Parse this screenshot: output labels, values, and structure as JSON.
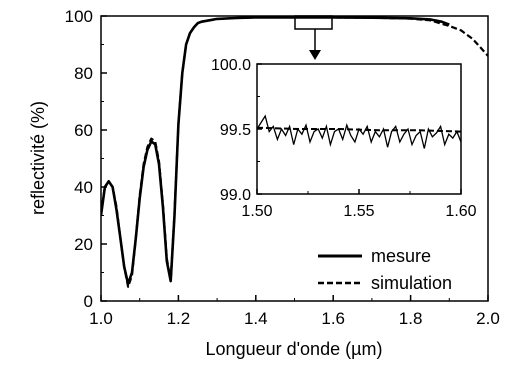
{
  "chart_data": {
    "type": "line",
    "xlabel": "Longueur d'onde (µm)",
    "ylabel": "reflectivité (%)",
    "xlim": [
      1.0,
      2.0
    ],
    "ylim": [
      0,
      100
    ],
    "xticks": [
      "1.0",
      "1.2",
      "1.4",
      "1.6",
      "1.8",
      "2.0"
    ],
    "yticks": [
      "0",
      "20",
      "40",
      "60",
      "80",
      "100"
    ],
    "legend_position": "bottom-right",
    "series": [
      {
        "name": "mesure",
        "style": "solid",
        "x": [
          1.0,
          1.01,
          1.02,
          1.03,
          1.04,
          1.05,
          1.06,
          1.07,
          1.08,
          1.09,
          1.1,
          1.11,
          1.12,
          1.13,
          1.14,
          1.15,
          1.16,
          1.17,
          1.18,
          1.19,
          1.2,
          1.21,
          1.22,
          1.23,
          1.24,
          1.25,
          1.26,
          1.28,
          1.3,
          1.35,
          1.4,
          1.5,
          1.6,
          1.7,
          1.8,
          1.85,
          1.88,
          1.9
        ],
        "y": [
          30,
          40,
          42,
          40,
          32,
          22,
          12,
          6,
          10,
          22,
          36,
          47,
          53,
          56,
          55,
          48,
          33,
          14,
          7,
          30,
          62,
          80,
          90,
          94,
          96,
          97.5,
          98,
          98.5,
          99,
          99.3,
          99.5,
          99.5,
          99.5,
          99.4,
          99.2,
          98.8,
          98.0,
          97.0
        ]
      },
      {
        "name": "simulation",
        "style": "dashed",
        "x": [
          1.0,
          1.01,
          1.02,
          1.03,
          1.04,
          1.05,
          1.06,
          1.07,
          1.08,
          1.09,
          1.1,
          1.11,
          1.12,
          1.13,
          1.14,
          1.15,
          1.16,
          1.17,
          1.18,
          1.19,
          1.2,
          1.21,
          1.22,
          1.23,
          1.24,
          1.25,
          1.26,
          1.28,
          1.3,
          1.35,
          1.4,
          1.5,
          1.6,
          1.7,
          1.8,
          1.85,
          1.9,
          1.93,
          1.96,
          1.98,
          2.0
        ],
        "y": [
          31,
          40,
          42,
          40,
          33,
          22,
          12,
          5,
          9,
          22,
          37,
          48,
          54,
          57,
          56,
          49,
          34,
          15,
          7,
          31,
          62,
          80,
          90,
          94,
          96,
          97.5,
          98,
          98.5,
          99,
          99.3,
          99.5,
          99.5,
          99.5,
          99.4,
          99.1,
          98.5,
          96.5,
          95,
          92,
          89,
          86
        ]
      }
    ],
    "inset": {
      "xlim": [
        1.5,
        1.6
      ],
      "ylim": [
        99.0,
        100.0
      ],
      "xticks": [
        "1.50",
        "1.55",
        "1.60"
      ],
      "yticks": [
        "99.0",
        "99.5",
        "100.0"
      ],
      "series": [
        {
          "name": "mesure",
          "style": "solid",
          "x": [
            1.5,
            1.502,
            1.504,
            1.506,
            1.508,
            1.51,
            1.512,
            1.514,
            1.516,
            1.518,
            1.52,
            1.522,
            1.524,
            1.526,
            1.528,
            1.53,
            1.532,
            1.534,
            1.536,
            1.538,
            1.54,
            1.542,
            1.544,
            1.546,
            1.548,
            1.55,
            1.552,
            1.554,
            1.556,
            1.558,
            1.56,
            1.562,
            1.564,
            1.566,
            1.568,
            1.57,
            1.572,
            1.574,
            1.576,
            1.578,
            1.58,
            1.582,
            1.584,
            1.586,
            1.588,
            1.59,
            1.592,
            1.594,
            1.596,
            1.598,
            1.6
          ],
          "y": [
            99.5,
            99.55,
            99.6,
            99.48,
            99.52,
            99.42,
            99.5,
            99.45,
            99.52,
            99.38,
            99.5,
            99.46,
            99.53,
            99.4,
            99.48,
            99.5,
            99.43,
            99.52,
            99.38,
            99.48,
            99.5,
            99.42,
            99.53,
            99.45,
            99.4,
            99.5,
            99.46,
            99.52,
            99.4,
            99.48,
            99.44,
            99.5,
            99.36,
            99.48,
            99.52,
            99.4,
            99.46,
            99.5,
            99.38,
            99.45,
            99.48,
            99.35,
            99.5,
            99.44,
            99.47,
            99.52,
            99.38,
            99.46,
            99.43,
            99.48,
            99.4
          ]
        },
        {
          "name": "simulation",
          "style": "dashed",
          "x": [
            1.5,
            1.52,
            1.54,
            1.56,
            1.58,
            1.6
          ],
          "y": [
            99.51,
            99.5,
            99.5,
            99.49,
            99.49,
            99.48
          ]
        }
      ]
    }
  }
}
